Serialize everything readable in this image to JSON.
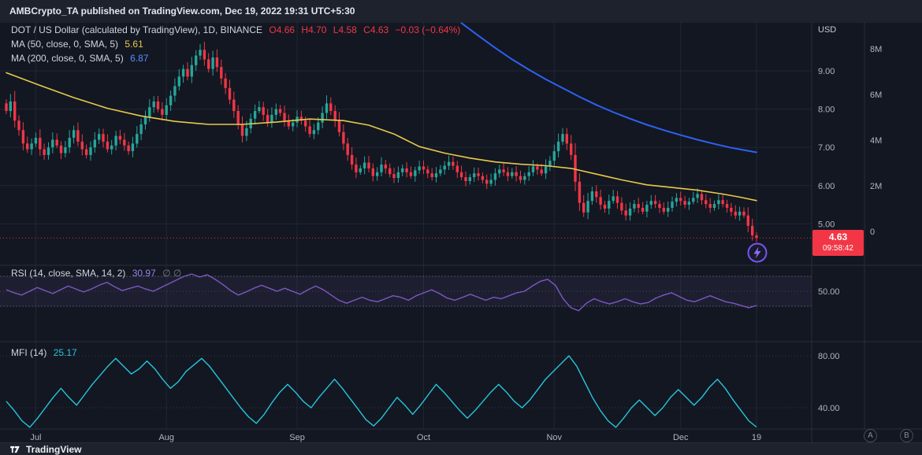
{
  "header": {
    "published": "AMBCrypto_TA published on TradingView.com, Dec 19, 2022 19:31 UTC+5:30"
  },
  "legend": {
    "symbol": "DOT / US Dollar (calculated by TradingView), 1D, BINANCE",
    "o": "O4.66",
    "h": "H4.70",
    "l": "L4.58",
    "c": "C4.63",
    "change": "−0.03 (−0.64%)",
    "ma50_label": "MA (50, close, 0, SMA, 5)",
    "ma50_value": "5.61",
    "ma200_label": "MA (200, close, 0, SMA, 5)",
    "ma200_value": "6.87"
  },
  "rsi_legend": {
    "label": "RSI (14, close, SMA, 14, 2)",
    "value": "30.97",
    "suffix": "∅ ∅"
  },
  "mfi_legend": {
    "label": "MFI (14)",
    "value": "25.17"
  },
  "axis": {
    "currency": "USD"
  },
  "badge": {
    "price": "4.63",
    "countdown": "09:58:42"
  },
  "buttons": {
    "a": "A",
    "b": "B"
  },
  "footer": {
    "brand": "TradingView"
  },
  "colors": {
    "up": "#26a69a",
    "down": "#f23645",
    "ma50": "#e8c94a",
    "ma200": "#2d62f0",
    "rsi": "#7e57c2",
    "mfi": "#26c6da",
    "badge": "#f23645"
  },
  "chart_data": {
    "type": "candlestick",
    "title": "DOT / US Dollar",
    "exchange": "BINANCE",
    "interval": "1D",
    "last_price": 4.63,
    "price_axis_ticks": [
      "9.00",
      "8.00",
      "7.00",
      "6.00",
      "5.00"
    ],
    "volume_axis_ticks": [
      "8M",
      "6M",
      "4M",
      "2M",
      "0"
    ],
    "time_ticks": [
      {
        "label": "Jul",
        "day": 7
      },
      {
        "label": "Aug",
        "day": 38
      },
      {
        "label": "Sep",
        "day": 69
      },
      {
        "label": "Oct",
        "day": 99
      },
      {
        "label": "Nov",
        "day": 130
      },
      {
        "label": "Dec",
        "day": 160
      },
      {
        "label": "19",
        "day": 178
      }
    ],
    "closes": [
      7.95,
      8.2,
      7.7,
      7.45,
      7.1,
      6.95,
      7.1,
      7.25,
      6.95,
      6.8,
      7.0,
      7.2,
      7.05,
      6.85,
      7.0,
      7.25,
      7.45,
      7.15,
      6.95,
      6.8,
      7.0,
      7.2,
      7.35,
      7.15,
      6.95,
      7.05,
      7.3,
      7.2,
      7.05,
      6.9,
      7.1,
      7.35,
      7.6,
      7.8,
      8.05,
      8.2,
      8.0,
      7.85,
      8.1,
      8.35,
      8.6,
      8.85,
      9.05,
      8.85,
      9.15,
      9.4,
      9.55,
      9.3,
      9.05,
      9.35,
      9.1,
      8.8,
      8.55,
      8.25,
      7.95,
      7.6,
      7.3,
      7.5,
      7.75,
      7.95,
      8.05,
      7.85,
      7.65,
      7.85,
      8.0,
      7.9,
      7.7,
      7.55,
      7.65,
      7.8,
      7.7,
      7.55,
      7.35,
      7.45,
      7.65,
      7.9,
      8.15,
      7.95,
      7.7,
      7.4,
      7.1,
      6.8,
      6.55,
      6.35,
      6.45,
      6.6,
      6.45,
      6.25,
      6.35,
      6.55,
      6.45,
      6.3,
      6.2,
      6.35,
      6.45,
      6.35,
      6.25,
      6.4,
      6.5,
      6.42,
      6.32,
      6.22,
      6.32,
      6.42,
      6.52,
      6.62,
      6.52,
      6.35,
      6.22,
      6.12,
      6.22,
      6.32,
      6.25,
      6.15,
      6.05,
      6.15,
      6.32,
      6.42,
      6.35,
      6.25,
      6.35,
      6.25,
      6.15,
      6.25,
      6.35,
      6.5,
      6.42,
      6.32,
      6.5,
      6.65,
      6.9,
      7.15,
      7.35,
      7.1,
      6.8,
      6.1,
      5.55,
      5.3,
      5.6,
      5.85,
      5.7,
      5.5,
      5.4,
      5.6,
      5.72,
      5.55,
      5.35,
      5.22,
      5.4,
      5.52,
      5.42,
      5.32,
      5.5,
      5.6,
      5.52,
      5.42,
      5.32,
      5.42,
      5.58,
      5.68,
      5.6,
      5.5,
      5.58,
      5.68,
      5.78,
      5.62,
      5.52,
      5.42,
      5.52,
      5.62,
      5.52,
      5.42,
      5.32,
      5.22,
      5.32,
      5.22,
      4.95,
      4.7,
      4.63
    ],
    "ma50": {
      "label": "MA 50",
      "points": [
        [
          0,
          8.95
        ],
        [
          8,
          8.62
        ],
        [
          16,
          8.3
        ],
        [
          24,
          8.02
        ],
        [
          32,
          7.82
        ],
        [
          40,
          7.68
        ],
        [
          48,
          7.6
        ],
        [
          56,
          7.6
        ],
        [
          64,
          7.66
        ],
        [
          72,
          7.74
        ],
        [
          80,
          7.7
        ],
        [
          86,
          7.58
        ],
        [
          92,
          7.35
        ],
        [
          98,
          7.02
        ],
        [
          104,
          6.85
        ],
        [
          110,
          6.72
        ],
        [
          116,
          6.62
        ],
        [
          122,
          6.56
        ],
        [
          128,
          6.52
        ],
        [
          134,
          6.45
        ],
        [
          140,
          6.3
        ],
        [
          146,
          6.15
        ],
        [
          152,
          6.02
        ],
        [
          158,
          5.95
        ],
        [
          164,
          5.88
        ],
        [
          170,
          5.78
        ],
        [
          174,
          5.7
        ],
        [
          178,
          5.61
        ]
      ]
    },
    "ma200": {
      "label": "MA 200",
      "points": [
        [
          108,
          10.25
        ],
        [
          112,
          9.92
        ],
        [
          116,
          9.6
        ],
        [
          120,
          9.3
        ],
        [
          124,
          9.03
        ],
        [
          128,
          8.78
        ],
        [
          132,
          8.55
        ],
        [
          136,
          8.32
        ],
        [
          140,
          8.11
        ],
        [
          144,
          7.92
        ],
        [
          148,
          7.75
        ],
        [
          152,
          7.59
        ],
        [
          156,
          7.45
        ],
        [
          160,
          7.32
        ],
        [
          164,
          7.2
        ],
        [
          168,
          7.09
        ],
        [
          172,
          6.99
        ],
        [
          175,
          6.93
        ],
        [
          178,
          6.87
        ]
      ]
    },
    "rsi": {
      "last": 30.97,
      "axis_ticks": [
        "50.00"
      ],
      "band": [
        30,
        70
      ],
      "values": [
        52,
        48,
        45,
        50,
        55,
        51,
        47,
        52,
        57,
        53,
        49,
        53,
        58,
        62,
        56,
        51,
        54,
        57,
        53,
        50,
        55,
        60,
        65,
        70,
        73,
        69,
        72,
        66,
        59,
        51,
        45,
        49,
        54,
        58,
        54,
        50,
        54,
        50,
        46,
        52,
        57,
        52,
        45,
        38,
        34,
        38,
        42,
        38,
        36,
        40,
        44,
        42,
        38,
        44,
        48,
        52,
        47,
        41,
        38,
        42,
        46,
        42,
        38,
        42,
        40,
        44,
        48,
        50,
        57,
        63,
        66,
        58,
        40,
        28,
        24,
        34,
        40,
        36,
        33,
        36,
        40,
        36,
        33,
        35,
        41,
        45,
        48,
        43,
        38,
        36,
        40,
        44,
        40,
        36,
        34,
        31,
        28,
        30.97
      ]
    },
    "mfi": {
      "last": 25.17,
      "axis_ticks": [
        "80.00",
        "40.00"
      ],
      "values": [
        45,
        38,
        30,
        25,
        32,
        40,
        48,
        55,
        48,
        42,
        50,
        58,
        65,
        72,
        78,
        72,
        66,
        70,
        76,
        70,
        62,
        55,
        60,
        68,
        73,
        78,
        72,
        64,
        56,
        48,
        40,
        33,
        28,
        35,
        44,
        52,
        58,
        52,
        45,
        40,
        48,
        55,
        62,
        55,
        47,
        39,
        31,
        26,
        32,
        40,
        48,
        42,
        35,
        42,
        50,
        58,
        52,
        45,
        38,
        32,
        38,
        45,
        52,
        58,
        52,
        45,
        40,
        46,
        54,
        62,
        68,
        74,
        80,
        72,
        60,
        48,
        38,
        30,
        25,
        32,
        40,
        46,
        40,
        34,
        40,
        48,
        54,
        48,
        42,
        48,
        56,
        62,
        55,
        46,
        38,
        30,
        25.17
      ]
    }
  }
}
